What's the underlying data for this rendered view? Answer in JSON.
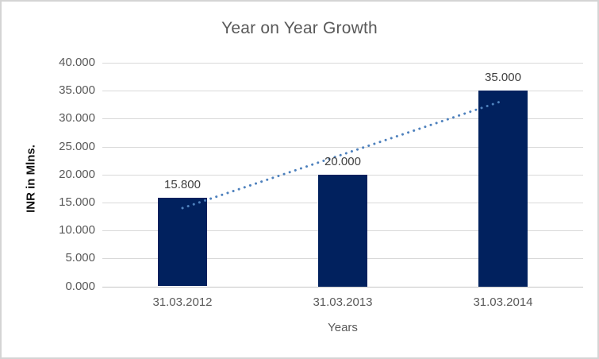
{
  "chart_data": {
    "type": "bar",
    "title": "Year on Year Growth",
    "categories": [
      "31.03.2012",
      "31.03.2013",
      "31.03.2014"
    ],
    "values": [
      15.8,
      20.0,
      35.0
    ],
    "data_labels": [
      "15.800",
      "20.000",
      "35.000"
    ],
    "xlabel": "Years",
    "ylabel": "INR in Mlns.",
    "ylim": [
      0,
      40
    ],
    "ytick_step": 5,
    "ytick_labels": [
      "0.000",
      "5.000",
      "10.000",
      "15.000",
      "20.000",
      "25.000",
      "30.000",
      "35.000",
      "40.000"
    ],
    "grid": true,
    "legend": false,
    "bar_color": "#01215E",
    "trendline": {
      "type": "linear",
      "style": "dotted",
      "color": "#4E81BD",
      "start_value": 14.0,
      "end_value": 33.2
    }
  }
}
